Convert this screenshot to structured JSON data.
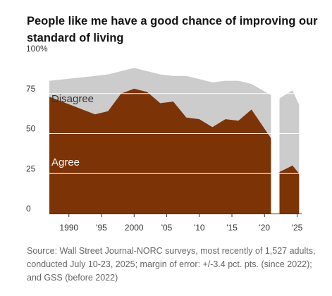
{
  "title": "People like me have a good chance of improving our standard of living",
  "source": "Source: Wall Street Journal-NORC surveys, most recently of 1,527 adults, conducted July 10-23, 2025; margin of error: +/-3.4 pct. pts. (since 2022); and GSS (before 2022)",
  "colors": {
    "agree": "#7c3306",
    "disagree": "#cccccc",
    "grid": "#ffffff",
    "axis": "#333333"
  },
  "chart_data": {
    "type": "area",
    "stacked": true,
    "title": "People like me have a good chance of improving our standard of living",
    "xlim": [
      1987,
      2025.7
    ],
    "ylim": [
      0,
      100
    ],
    "y_ticks": [
      0,
      25,
      50,
      75,
      100
    ],
    "y_tick_labels": [
      "0",
      "25",
      "50",
      "75",
      "100%"
    ],
    "x_ticks": [
      1990,
      1995,
      2000,
      2005,
      2010,
      2015,
      2020,
      2025
    ],
    "x_tick_labels": [
      "1990",
      "'95",
      "2000",
      "'05",
      "'10",
      "'15",
      "'20",
      "'25"
    ],
    "gap": [
      2021.2,
      2022.3
    ],
    "series": [
      {
        "name": "Agree",
        "color": "#7c3306",
        "segments": [
          {
            "x": [
              1987,
              1994,
              1996,
              1998,
              2000,
              2002,
              2004,
              2006,
              2008,
              2010,
              2012,
              2014,
              2016,
              2018,
              2021
            ],
            "y": [
              73,
              62,
              64,
              75,
              78,
              76,
              69,
              70,
              60,
              59,
              54,
              59,
              58,
              65,
              47
            ]
          },
          {
            "x": [
              2022.3,
              2024.3,
              2025.3
            ],
            "y": [
              26,
              30,
              25
            ]
          }
        ]
      },
      {
        "name": "Disagree",
        "color": "#cccccc",
        "segments": [
          {
            "x": [
              1987,
              1994,
              1996,
              1998,
              2000,
              2002,
              2004,
              2006,
              2008,
              2010,
              2012,
              2014,
              2016,
              2018,
              2021
            ],
            "y": [
              83,
              86,
              87,
              89,
              91,
              89,
              87,
              86,
              86,
              84,
              82,
              83,
              83,
              81,
              74
            ]
          },
          {
            "x": [
              2022.3,
              2024.3,
              2025.3
            ],
            "y": [
              72,
              77,
              68
            ]
          }
        ]
      }
    ]
  }
}
